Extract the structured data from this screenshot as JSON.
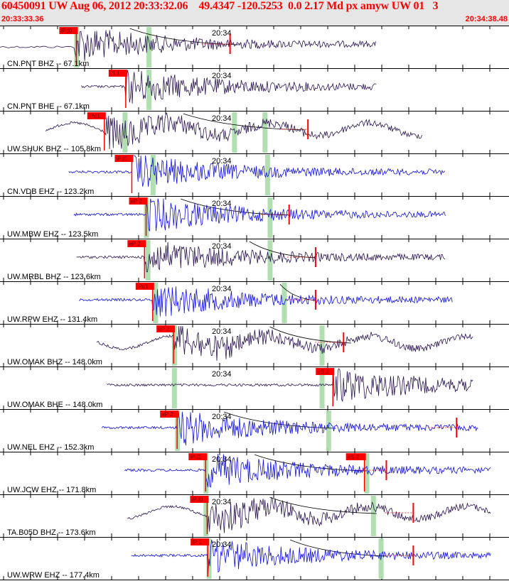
{
  "header": {
    "title": "60450091 UW Aug 06, 2012 20:33:32.06    49.4347 -120.5253  0.0 2.17 Md px amyw UW 01   3",
    "start_time": "20:33:33.36",
    "end_time": "20:34:38.48"
  },
  "minute_label": "20:34",
  "colors": {
    "trace_dark": "#2a1450",
    "trace_blue": "#1010e0",
    "pick": "#ff0000",
    "window": "#a8dca8",
    "title": "#ff0000",
    "header_bg": "#e6e6e6"
  },
  "traces": [
    {
      "label": "CN.PNT BHZ -- 67.1km",
      "pick_label": "iPd0",
      "pick_t": 0.15,
      "green": [
        0.15,
        0.292
      ],
      "sig_start": 0.15,
      "sig_end": 0.74,
      "lead_start": 0.0,
      "color": "dark",
      "second_pick": null,
      "second_t": null,
      "red_marks": [
        0.452
      ],
      "curve": [
        0.255,
        0.47
      ]
    },
    {
      "label": "CN.PNT BHE -- 67.1km",
      "pick_label": "iS 1",
      "pick_t": 0.247,
      "green": [
        null,
        0.292
      ],
      "sig_start": 0.16,
      "sig_end": 0.74,
      "lead_start": null,
      "color": "dark",
      "second_pick": null,
      "second_t": null,
      "red_marks": [],
      "curve": null
    },
    {
      "label": "UW.SHUK BHZ -- 105.8km",
      "pick_label": "iPd1",
      "pick_t": 0.205,
      "green": [
        0.245,
        0.46,
        0.52
      ],
      "sig_start": 0.09,
      "sig_end": 0.83,
      "lead_start": null,
      "color": "dark",
      "second_pick": null,
      "second_t": null,
      "red_marks": [
        0.605
      ],
      "curve": [
        0.36,
        0.6
      ]
    },
    {
      "label": "CN.VDB EHZ -- 123.2km",
      "pick_label": "iPd1",
      "pick_t": 0.259,
      "green": [
        0.3,
        0.525
      ],
      "sig_start": 0.135,
      "sig_end": 0.875,
      "lead_start": null,
      "color": "blue",
      "second_pick": null,
      "second_t": null,
      "red_marks": [],
      "curve": null
    },
    {
      "label": "UW.MBW EHZ -- 123.5km",
      "pick_label": "eP 2",
      "pick_t": 0.287,
      "green": [
        0.287,
        0.53
      ],
      "sig_start": 0.145,
      "sig_end": 0.875,
      "lead_start": null,
      "color": "blue",
      "second_pick": null,
      "second_t": null,
      "red_marks": [
        0.568
      ],
      "curve": [
        0.355,
        0.57
      ]
    },
    {
      "label": "UW.MRBL BHZ -- 123.6km",
      "pick_label": "eP 2",
      "pick_t": 0.284,
      "green": [
        0.29,
        0.53
      ],
      "sig_start": 0.15,
      "sig_end": 0.875,
      "lead_start": null,
      "color": "dark",
      "second_pick": null,
      "second_t": null,
      "red_marks": [
        0.62
      ],
      "curve": [
        0.49,
        0.62
      ]
    },
    {
      "label": "UW.RPW EHZ -- 131.4km",
      "pick_label": "iPd1",
      "pick_t": 0.3,
      "green": [
        0.305,
        0.558
      ],
      "sig_start": 0.155,
      "sig_end": 0.89,
      "lead_start": null,
      "color": "blue",
      "second_pick": null,
      "second_t": null,
      "red_marks": [
        0.62
      ],
      "curve": [
        0.55,
        0.62
      ]
    },
    {
      "label": "UW.OMAK BHZ -- 148.0km",
      "pick_label": "eP 2",
      "pick_t": 0.341,
      "green": [
        0.342,
        0.632
      ],
      "sig_start": 0.19,
      "sig_end": 0.93,
      "lead_start": null,
      "color": "dark",
      "second_pick": null,
      "second_t": null,
      "red_marks": [
        0.675
      ],
      "curve": [
        0.53,
        0.69
      ]
    },
    {
      "label": "UW.OMAK BHE -- 148.0km",
      "pick_label": "eS 2",
      "pick_t": 0.654,
      "green": [
        0.342,
        0.632
      ],
      "sig_start": 0.21,
      "sig_end": 0.93,
      "lead_start": null,
      "color": "dark",
      "second_pick": null,
      "second_t": null,
      "red_marks": [],
      "curve": null
    },
    {
      "label": "UW.NEL EHZ -- 152.3km",
      "pick_label": "eP 2",
      "pick_t": 0.348,
      "green": [
        0.348,
        0.645
      ],
      "sig_start": 0.2,
      "sig_end": 0.94,
      "lead_start": null,
      "color": "blue",
      "second_pick": null,
      "second_t": null,
      "red_marks": [
        0.897
      ],
      "curve": [
        0.44,
        0.66
      ]
    },
    {
      "label": "UW.JCW EHZ -- 171.8km",
      "pick_label": "iPd1",
      "pick_t": 0.404,
      "green": [
        0.404,
        0.72
      ],
      "sig_start": 0.245,
      "sig_end": 0.965,
      "lead_start": null,
      "color": "blue",
      "second_pick": "eS 2",
      "second_t": 0.716,
      "red_marks": [
        0.759
      ],
      "curve": [
        0.5,
        0.72
      ]
    },
    {
      "label": "TA.B05D BHZ -- 173.6km",
      "pick_label": "iPd0",
      "pick_t": 0.407,
      "green": [
        0.404,
        0.733
      ],
      "sig_start": 0.25,
      "sig_end": 0.965,
      "lead_start": null,
      "color": "dark",
      "second_pick": null,
      "second_t": null,
      "red_marks": [
        0.812
      ],
      "curve": [
        0.53,
        0.74
      ]
    },
    {
      "label": "UW.WRW EHZ -- 177.4km",
      "pick_label": "iP 1",
      "pick_t": 0.408,
      "green": [
        0.41,
        0.748
      ],
      "sig_start": 0.258,
      "sig_end": 0.965,
      "lead_start": null,
      "color": "blue",
      "second_pick": null,
      "second_t": null,
      "red_marks": [
        0.812
      ],
      "curve": [
        0.57,
        0.76
      ]
    }
  ]
}
